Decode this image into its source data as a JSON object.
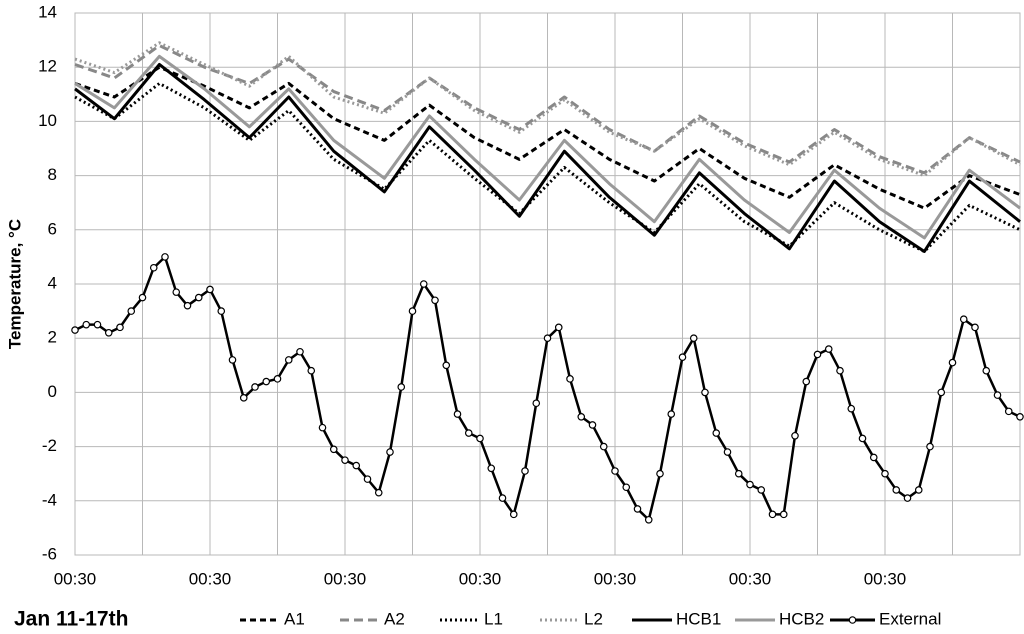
{
  "chart_data": {
    "type": "line",
    "xlabel": "Jan 11-17th",
    "ylabel": "Temperature, °C",
    "xlim": [
      0,
      168
    ],
    "ylim": [
      -6,
      14
    ],
    "yticks": [
      -6,
      -4,
      -2,
      0,
      2,
      4,
      6,
      8,
      10,
      12,
      14
    ],
    "xticks": [
      {
        "value": 0,
        "label": "00:30"
      },
      {
        "value": 12,
        "label": null
      },
      {
        "value": 24,
        "label": "00:30"
      },
      {
        "value": 36,
        "label": null
      },
      {
        "value": 48,
        "label": "00:30"
      },
      {
        "value": 60,
        "label": null
      },
      {
        "value": 72,
        "label": "00:30"
      },
      {
        "value": 84,
        "label": null
      },
      {
        "value": 96,
        "label": "00:30"
      },
      {
        "value": 108,
        "label": null
      },
      {
        "value": 120,
        "label": "00:30"
      },
      {
        "value": 132,
        "label": null
      },
      {
        "value": 144,
        "label": "00:30"
      },
      {
        "value": 156,
        "label": null
      }
    ],
    "grid": true,
    "legend": "bottom",
    "series": [
      {
        "name": "A1",
        "color": "#000000",
        "dash": "6,4",
        "x": [
          0,
          7,
          15,
          23,
          31,
          38,
          46,
          55,
          63,
          71,
          79,
          87,
          95,
          103,
          111,
          119,
          127,
          135,
          143,
          151,
          159,
          168
        ],
        "values": [
          11.4,
          10.9,
          12.0,
          11.3,
          10.5,
          11.4,
          10.1,
          9.3,
          10.6,
          9.4,
          8.6,
          9.7,
          8.6,
          7.8,
          9.0,
          7.9,
          7.2,
          8.4,
          7.5,
          6.8,
          8.0,
          7.3
        ]
      },
      {
        "name": "A2",
        "color": "#888888",
        "dash": "9,5",
        "x": [
          0,
          7,
          15,
          23,
          31,
          38,
          46,
          55,
          63,
          71,
          79,
          87,
          95,
          103,
          111,
          119,
          127,
          135,
          143,
          151,
          159,
          168
        ],
        "values": [
          12.1,
          11.6,
          12.8,
          12.0,
          11.4,
          12.3,
          11.1,
          10.4,
          11.6,
          10.5,
          9.7,
          10.9,
          9.7,
          8.9,
          10.2,
          9.2,
          8.5,
          9.7,
          8.7,
          8.1,
          9.4,
          8.5
        ]
      },
      {
        "name": "L1",
        "color": "#000000",
        "dash": "2,3",
        "x": [
          0,
          7,
          15,
          23,
          31,
          38,
          46,
          55,
          63,
          71,
          79,
          87,
          95,
          103,
          111,
          119,
          127,
          135,
          143,
          151,
          159,
          168
        ],
        "values": [
          10.9,
          10.1,
          11.4,
          10.5,
          9.3,
          10.4,
          8.6,
          7.5,
          9.3,
          7.9,
          6.6,
          8.3,
          7.0,
          5.9,
          7.7,
          6.3,
          5.4,
          7.0,
          6.0,
          5.2,
          6.9,
          6.0
        ]
      },
      {
        "name": "L2",
        "color": "#999999",
        "dash": "2,3",
        "x": [
          0,
          7,
          15,
          23,
          31,
          38,
          46,
          55,
          63,
          71,
          79,
          87,
          95,
          103,
          111,
          119,
          127,
          135,
          143,
          151,
          159,
          168
        ],
        "values": [
          12.3,
          11.8,
          12.9,
          12.1,
          11.3,
          12.4,
          10.9,
          10.3,
          11.6,
          10.4,
          9.6,
          10.8,
          9.6,
          8.9,
          10.1,
          9.1,
          8.4,
          9.6,
          8.6,
          8.0,
          9.4,
          8.4
        ]
      },
      {
        "name": "HCB1",
        "color": "#000000",
        "x": [
          0,
          7,
          15,
          23,
          31,
          38,
          46,
          55,
          63,
          71,
          79,
          87,
          95,
          103,
          111,
          119,
          127,
          135,
          143,
          151,
          159,
          168
        ],
        "values": [
          11.2,
          10.1,
          12.1,
          10.8,
          9.4,
          10.9,
          8.9,
          7.4,
          9.8,
          8.2,
          6.5,
          8.9,
          7.2,
          5.8,
          8.1,
          6.6,
          5.3,
          7.8,
          6.3,
          5.2,
          7.8,
          6.3
        ]
      },
      {
        "name": "HCB2",
        "color": "#999999",
        "x": [
          0,
          7,
          15,
          23,
          31,
          38,
          46,
          55,
          63,
          71,
          79,
          87,
          95,
          103,
          111,
          119,
          127,
          135,
          143,
          151,
          159,
          168
        ],
        "values": [
          11.4,
          10.5,
          12.4,
          11.2,
          9.8,
          11.2,
          9.3,
          7.9,
          10.2,
          8.6,
          7.1,
          9.3,
          7.7,
          6.3,
          8.6,
          7.1,
          5.9,
          8.2,
          6.8,
          5.7,
          8.2,
          6.8
        ]
      },
      {
        "name": "External",
        "color": "#000000",
        "marker": "circle",
        "x": [
          0,
          2,
          4,
          6,
          8,
          10,
          12,
          14,
          16,
          18,
          20,
          22,
          24,
          26,
          28,
          30,
          32,
          34,
          36,
          38,
          40,
          42,
          44,
          46,
          48,
          50,
          52,
          54,
          56,
          58,
          60,
          62,
          64,
          66,
          68,
          70,
          72,
          74,
          76,
          78,
          80,
          82,
          84,
          86,
          88,
          90,
          92,
          94,
          96,
          98,
          100,
          102,
          104,
          106,
          108,
          110,
          112,
          114,
          116,
          118,
          120,
          122,
          124,
          126,
          128,
          130,
          132,
          134,
          136,
          138,
          140,
          142,
          144,
          146,
          148,
          150,
          152,
          154,
          156,
          158,
          160,
          162,
          164,
          166,
          168
        ],
        "values": [
          2.3,
          2.5,
          2.5,
          2.2,
          2.4,
          3.0,
          3.5,
          4.6,
          5.0,
          3.7,
          3.2,
          3.5,
          3.8,
          3.0,
          1.2,
          -0.2,
          0.2,
          0.4,
          0.5,
          1.2,
          1.5,
          0.8,
          -1.3,
          -2.1,
          -2.5,
          -2.7,
          -3.2,
          -3.7,
          -2.2,
          0.2,
          3.0,
          4.0,
          3.4,
          1.0,
          -0.8,
          -1.5,
          -1.7,
          -2.8,
          -3.9,
          -4.5,
          -2.9,
          -0.4,
          2.0,
          2.4,
          0.5,
          -0.9,
          -1.2,
          -2.0,
          -2.9,
          -3.5,
          -4.3,
          -4.7,
          -3.0,
          -0.8,
          1.3,
          2.0,
          0.0,
          -1.5,
          -2.2,
          -3.0,
          -3.4,
          -3.6,
          -4.5,
          -4.5,
          -1.6,
          0.4,
          1.4,
          1.6,
          0.8,
          -0.6,
          -1.7,
          -2.4,
          -3.0,
          -3.6,
          -3.9,
          -3.6,
          -2.0,
          0.0,
          1.1,
          2.7,
          2.4,
          0.8,
          -0.1,
          -0.7,
          -0.9
        ]
      }
    ]
  }
}
